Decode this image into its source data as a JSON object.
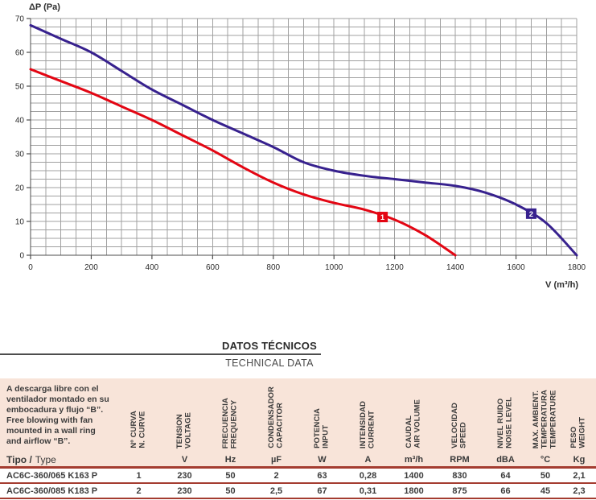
{
  "chart_data": {
    "type": "line",
    "title": "",
    "ylabel": "ΔP (Pa)",
    "xlabel": "V (m³/h)",
    "xlim": [
      0,
      1800
    ],
    "ylim": [
      0,
      70
    ],
    "x_major_step": 200,
    "y_major_step": 10,
    "x_minor_step": 50,
    "y_minor_step": 2.5,
    "grid": true,
    "legend": "none",
    "series": [
      {
        "name": "1",
        "color": "#e30613",
        "points": [
          [
            0,
            55
          ],
          [
            100,
            51.5
          ],
          [
            200,
            48
          ],
          [
            300,
            44
          ],
          [
            400,
            40
          ],
          [
            500,
            35.5
          ],
          [
            600,
            31
          ],
          [
            700,
            26
          ],
          [
            800,
            21.5
          ],
          [
            900,
            18
          ],
          [
            1000,
            15.5
          ],
          [
            1100,
            13.5
          ],
          [
            1200,
            10.5
          ],
          [
            1300,
            6
          ],
          [
            1400,
            0
          ]
        ]
      },
      {
        "name": "2",
        "color": "#37218e",
        "points": [
          [
            0,
            68
          ],
          [
            100,
            64
          ],
          [
            200,
            60
          ],
          [
            300,
            54.5
          ],
          [
            400,
            49
          ],
          [
            500,
            44.5
          ],
          [
            600,
            40
          ],
          [
            700,
            36
          ],
          [
            800,
            32
          ],
          [
            900,
            27.5
          ],
          [
            1000,
            25
          ],
          [
            1100,
            23.5
          ],
          [
            1200,
            22.5
          ],
          [
            1300,
            21.5
          ],
          [
            1400,
            20.5
          ],
          [
            1500,
            18.5
          ],
          [
            1600,
            15
          ],
          [
            1700,
            9.5
          ],
          [
            1800,
            0
          ]
        ]
      }
    ],
    "markers": [
      {
        "label": "1",
        "x": 1160,
        "y": 11.3,
        "color": "#e30613"
      },
      {
        "label": "2",
        "x": 1650,
        "y": 12.3,
        "color": "#37218e"
      }
    ],
    "x_ticks": [
      0,
      200,
      400,
      600,
      800,
      1000,
      1200,
      1400,
      1600,
      1800
    ],
    "y_ticks": [
      0,
      10,
      20,
      30,
      40,
      50,
      60,
      70
    ]
  },
  "section": {
    "title_es": "DATOS TÉCNICOS",
    "title_en": "TECHNICAL DATA"
  },
  "table": {
    "description_es": [
      "A descarga libre con el",
      "ventilador montado en su",
      "embocadura y flujo “B”."
    ],
    "description_en": [
      "Free blowing with fan",
      "mounted in a wall ring",
      "and airflow “B”."
    ],
    "type_label_bold": "Tipo /",
    "type_label_regular": "Type",
    "columns": [
      {
        "lines": [
          "Nº CURVA",
          "N. CURVE"
        ],
        "unit": ""
      },
      {
        "lines": [
          "TENSION",
          "VOLTAGE"
        ],
        "unit": "V"
      },
      {
        "lines": [
          "FRECUENCIA",
          "FREQUENCY"
        ],
        "unit": "Hz"
      },
      {
        "lines": [
          "CONDENSADOR",
          "CAPACITOR"
        ],
        "unit": "µF"
      },
      {
        "lines": [
          "POTENCIA",
          "INPUT"
        ],
        "unit": "W"
      },
      {
        "lines": [
          "INTENSIDAD",
          "CURRENT"
        ],
        "unit": "A"
      },
      {
        "lines": [
          "CAUDAL",
          "AIR VOLUME"
        ],
        "unit": "m³/h"
      },
      {
        "lines": [
          "VELOCIDAD",
          "SPEED"
        ],
        "unit": "RPM"
      },
      {
        "lines": [
          "NIVEL RUIDO",
          "NOISE LEVEL"
        ],
        "unit": "dBA"
      },
      {
        "lines": [
          "MAX. AMBIENT.",
          "TEMPERATURA",
          "TEMPERATURE"
        ],
        "unit": "°C"
      },
      {
        "lines": [
          "PESO",
          "WEIGHT"
        ],
        "unit": "Kg"
      }
    ],
    "rows": [
      [
        "AC6C-360/065 K163 P",
        "1",
        "230",
        "50",
        "2",
        "63",
        "0,28",
        "1400",
        "830",
        "64",
        "50",
        "2,1"
      ],
      [
        "AC6C-360/085 K183 P",
        "2",
        "230",
        "50",
        "2,5",
        "67",
        "0,31",
        "1800",
        "875",
        "66",
        "45",
        "2,3"
      ]
    ]
  },
  "colors": {
    "curve1": "#e30613",
    "curve2": "#37218e",
    "grid": "#a0a0a0",
    "axis": "#4d4d4d",
    "table_bg": "#f8e4d9",
    "table_line": "#a43c30",
    "text": "#3a3a3a"
  }
}
